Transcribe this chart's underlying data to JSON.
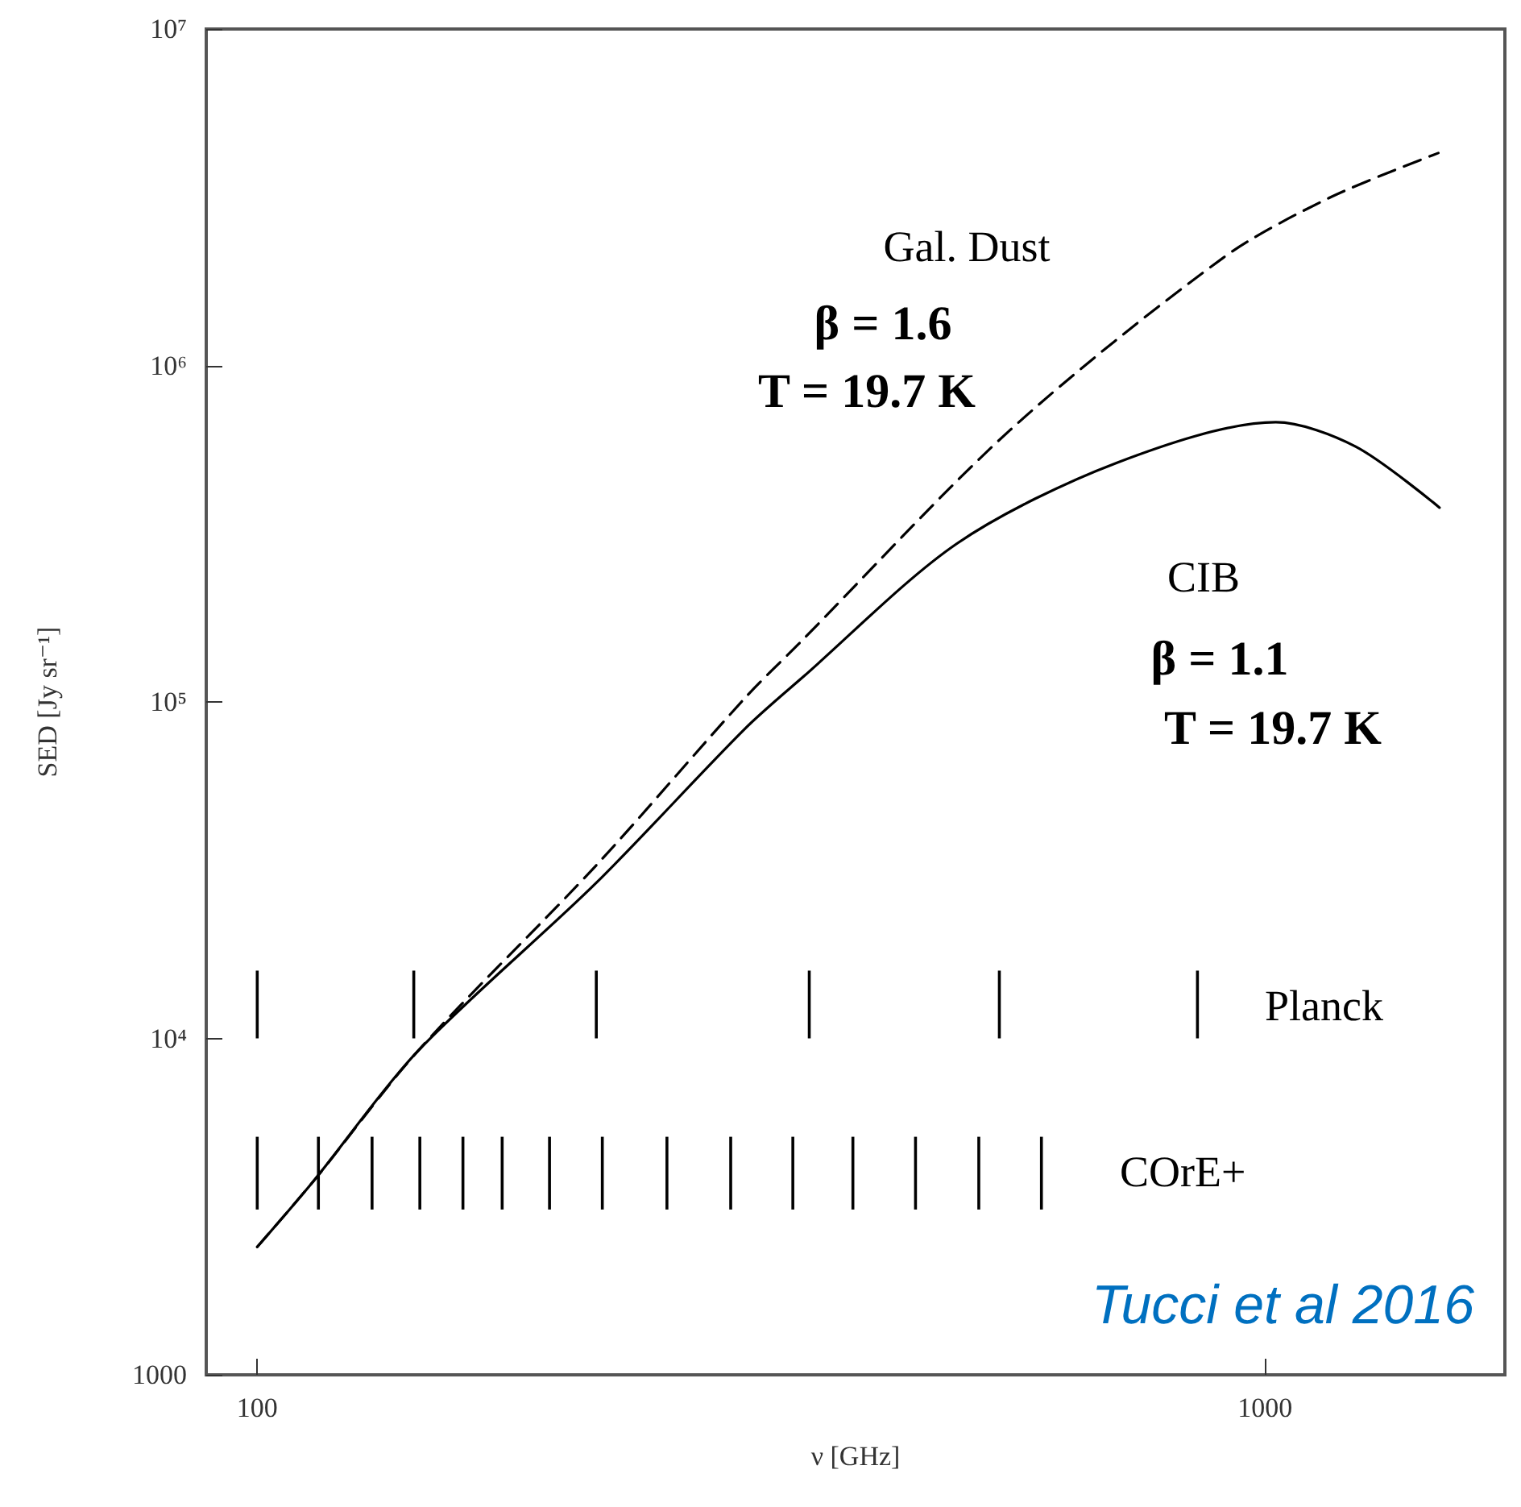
{
  "chart_data": {
    "type": "line",
    "xlabel": "ν [GHz]",
    "ylabel": "SED [Jy sr⁻¹]",
    "log": "xy",
    "grid": false,
    "legend": false,
    "xlim": [
      89,
      1730
    ],
    "xticks": [
      100,
      1000
    ],
    "ylim": [
      1000,
      10000000
    ],
    "yticks": [
      1000,
      {
        "value": 10000,
        "label": "10⁴"
      },
      {
        "value": 100000,
        "label": "10⁵"
      },
      {
        "value": 1000000,
        "label": "10⁶"
      },
      {
        "value": 10000000,
        "label": "10⁷"
      }
    ],
    "series": [
      {
        "name": "Gal. Dust",
        "color": "#000000",
        "line_style": "dashed",
        "x": [
          100,
          114,
          144,
          217,
          305,
          344,
          558,
          909,
          1156,
          1486
        ],
        "values": [
          2400,
          3800,
          9100,
          32700,
          103000,
          148000,
          641000,
          2090000,
          3140000,
          4280000
        ]
      },
      {
        "name": "CIB",
        "color": "#000000",
        "line_style": "solid",
        "x": [
          100,
          114,
          144,
          217,
          305,
          348,
          495,
          713,
          1025,
          1230,
          1490
        ],
        "values": [
          2400,
          3800,
          9100,
          29000,
          83400,
          118600,
          296000,
          514000,
          678000,
          574000,
          378000
        ]
      },
      {
        "name": "COrE+",
        "type": "bar",
        "color": "#000000",
        "x": [
          100,
          115,
          130,
          145,
          160,
          175,
          195,
          220,
          255,
          295,
          340,
          390,
          450,
          520,
          600
        ],
        "base": [
          3100,
          3100,
          3100,
          3100,
          3100,
          3100,
          3100,
          3100,
          3100,
          3100,
          3100,
          3100,
          3100,
          3100,
          3100
        ],
        "values": [
          2000,
          2000,
          2000,
          2000,
          2000,
          2000,
          2000,
          2000,
          2000,
          2000,
          2000,
          2000,
          2000,
          2000,
          2000
        ]
      },
      {
        "name": "Planck",
        "type": "bar",
        "color": "#000000",
        "x": [
          100,
          143,
          217,
          353,
          545,
          857
        ],
        "base": [
          10000,
          10000,
          10000,
          10000,
          10000,
          10000
        ],
        "values": [
          5900,
          5900,
          5900,
          5900,
          5900,
          5900
        ]
      }
    ],
    "annotations": [
      "β = 1.6",
      "T = 19.7 K",
      "β = 1.1",
      "T = 19.7 K",
      "Tucci et al 2016"
    ]
  }
}
